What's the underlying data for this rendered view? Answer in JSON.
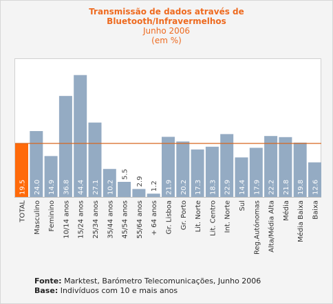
{
  "chart_data": {
    "type": "bar",
    "title": "Transmissão de dados através de Bluetooth/Infravermelhos",
    "title_lines": [
      "Transmissão de dados através de",
      "Bluetooth/Infravermelhos"
    ],
    "subtitle": "Junho 2006",
    "unit": "(em %)",
    "categories": [
      "TOTAL",
      "Masculino",
      "Feminino",
      "10/14 anos",
      "15/24 anos",
      "25/34 anos",
      "35/44 anos",
      "45/54 anos",
      "55/64 anos",
      "+ 64 anos",
      "Gr. Lisboa",
      "Gr. Porto",
      "Lit. Norte",
      "Lit. Centro",
      "Int. Norte",
      "Sul",
      "Reg.Autónomas",
      "Alta/Média Alta",
      "Média",
      "Média Baixa",
      "Baixa"
    ],
    "values": [
      19.5,
      24.0,
      14.9,
      36.8,
      44.4,
      27.1,
      10.2,
      5.5,
      2.9,
      1.2,
      21.9,
      20.2,
      17.3,
      18.3,
      22.9,
      14.4,
      17.9,
      22.2,
      21.8,
      19.8,
      12.6
    ],
    "value_labels": [
      "19.5",
      "24.0",
      "14.9",
      "36.8",
      "44.4",
      "27.1",
      "10.2",
      "5.5",
      "2.9",
      "1.2",
      "21.9",
      "20.2",
      "17.3",
      "18.3",
      "22.9",
      "14.4",
      "17.9",
      "22.2",
      "21.8",
      "19.8",
      "12.6"
    ],
    "reference_line": 19.5,
    "highlight_index": 0,
    "ylim": [
      0,
      50
    ],
    "colors": {
      "bar": "#94abc3",
      "highlight": "#ff6a0a",
      "reference_line": "#d8661f",
      "value_label_inside": "#ffffff",
      "value_label_outside": "#444444",
      "category_label": "#333333"
    },
    "grid": false,
    "legend": "none"
  },
  "footer": {
    "source_label": "Fonte:",
    "source_text": "Marktest, Barómetro Telecomunicações, Junho 2006",
    "base_label": "Base:",
    "base_text": "Indivíduos com 10 e mais anos"
  }
}
